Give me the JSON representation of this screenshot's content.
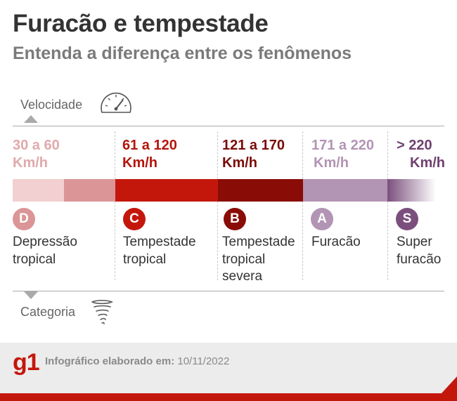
{
  "header": {
    "title": "Furacão e tempestade",
    "subtitle": "Entenda a diferença entre os fenômenos"
  },
  "speed_section": {
    "label": "Velocidade",
    "icon": "speedometer-icon"
  },
  "category_section": {
    "label": "Categoria",
    "icon": "tornado-icon"
  },
  "categories": [
    {
      "range": "30 a 60",
      "unit": "Km/h",
      "letter": "D",
      "name": "Depressão tropical",
      "color": "#db9597",
      "text_color": "#e0a9ab"
    },
    {
      "range": "61 a 120",
      "unit": "Km/h",
      "letter": "C",
      "name": "Tempestade tropical",
      "color": "#c4170c",
      "text_color": "#b3150c"
    },
    {
      "range": "121 a 170",
      "unit": "Km/h",
      "letter": "B",
      "name": "Tempestade tropical severa",
      "color": "#8a0c07",
      "text_color": "#7a0b07"
    },
    {
      "range": "171 a 220",
      "unit": "Km/h",
      "letter": "A",
      "name": "Furacão",
      "color": "#b294b4",
      "text_color": "#b294b4"
    },
    {
      "range": "> 220",
      "unit": "Km/h",
      "letter": "S",
      "name": "Super furacão",
      "color": "#7b4f7d",
      "text_color": "#6f416f"
    }
  ],
  "footer": {
    "logo": "g1",
    "credit_label": "Infográfico elaborado em:",
    "credit_date": "10/11/2022"
  },
  "colors": {
    "brand_red": "#c4170c",
    "footer_bg": "#ececec",
    "depressao_light": "#f2cfd0",
    "depressao_mid": "#db9597"
  }
}
